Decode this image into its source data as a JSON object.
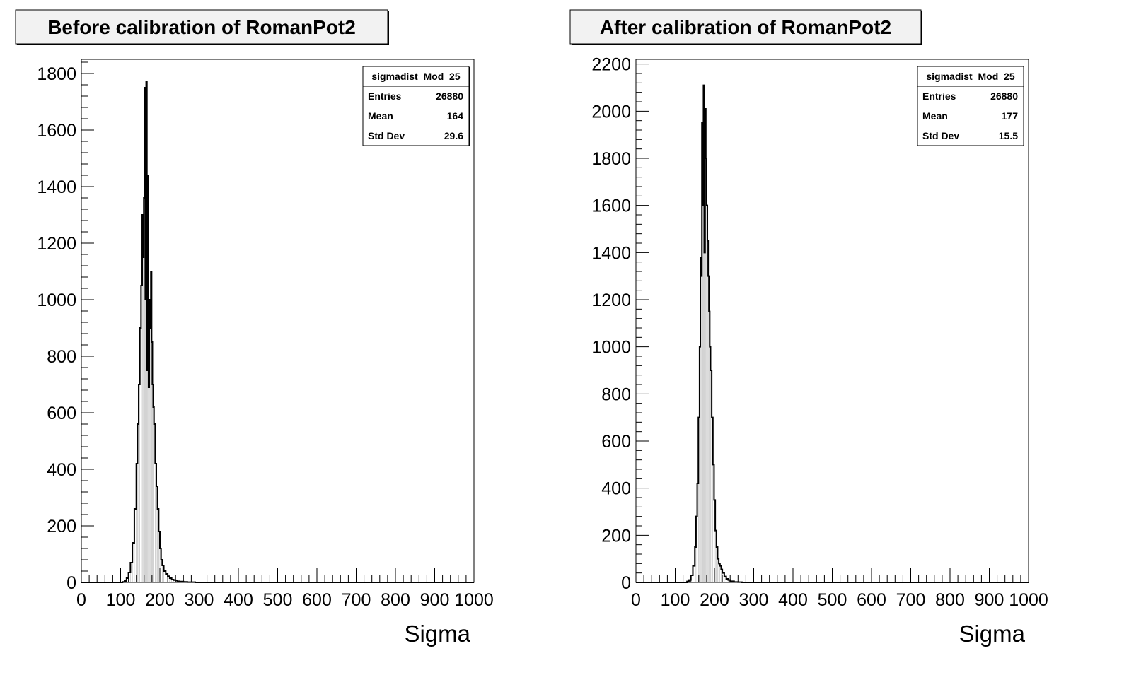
{
  "chart_data": [
    {
      "type": "histogram",
      "title": "Before calibration of RomanPot2",
      "xlabel": "Sigma",
      "ylabel": "",
      "xlim": [
        0,
        1000
      ],
      "ylim": [
        0,
        1850
      ],
      "x_ticks": [
        0,
        100,
        200,
        300,
        400,
        500,
        600,
        700,
        800,
        900,
        1000
      ],
      "y_ticks": [
        0,
        200,
        400,
        600,
        800,
        1000,
        1200,
        1400,
        1600,
        1800
      ],
      "grid": false,
      "legend": "none",
      "stats": {
        "name": "sigmadist_Mod_25",
        "rows": [
          {
            "label": "Entries",
            "value": "26880"
          },
          {
            "label": "Mean",
            "value": "164"
          },
          {
            "label": "Std Dev",
            "value": "29.6"
          }
        ]
      },
      "series": [
        {
          "x": [
            100,
            105,
            110,
            115,
            120,
            125,
            130,
            135,
            140,
            143,
            146,
            149,
            152,
            155,
            157,
            159,
            161,
            163,
            165,
            167,
            169,
            171,
            173,
            175,
            177,
            179,
            181,
            183,
            185,
            188,
            191,
            194,
            197,
            200,
            203,
            206,
            210,
            215,
            220,
            225,
            230,
            235,
            240,
            245,
            250,
            260,
            270,
            280,
            290,
            300
          ],
          "values": [
            0,
            2,
            5,
            15,
            35,
            70,
            140,
            260,
            420,
            560,
            700,
            900,
            1050,
            1300,
            1150,
            1360,
            1750,
            1000,
            1770,
            750,
            1440,
            690,
            1000,
            900,
            1100,
            850,
            700,
            620,
            560,
            420,
            340,
            260,
            180,
            120,
            80,
            60,
            40,
            30,
            22,
            15,
            10,
            8,
            6,
            4,
            3,
            2,
            1,
            1,
            0,
            0
          ]
        }
      ]
    },
    {
      "type": "histogram",
      "title": "After calibration of RomanPot2",
      "xlabel": "Sigma",
      "ylabel": "",
      "xlim": [
        0,
        1000
      ],
      "ylim": [
        0,
        2220
      ],
      "x_ticks": [
        0,
        100,
        200,
        300,
        400,
        500,
        600,
        700,
        800,
        900,
        1000
      ],
      "y_ticks": [
        0,
        200,
        400,
        600,
        800,
        1000,
        1200,
        1400,
        1600,
        1800,
        2000,
        2200
      ],
      "grid": false,
      "legend": "none",
      "stats": {
        "name": "sigmadist_Mod_25",
        "rows": [
          {
            "label": "Entries",
            "value": "26880"
          },
          {
            "label": "Mean",
            "value": "177"
          },
          {
            "label": "Std Dev",
            "value": "15.5"
          }
        ]
      },
      "series": [
        {
          "x": [
            120,
            130,
            135,
            140,
            145,
            150,
            153,
            156,
            159,
            162,
            164,
            166,
            168,
            170,
            172,
            174,
            176,
            178,
            180,
            182,
            184,
            186,
            188,
            190,
            193,
            196,
            199,
            202,
            205,
            208,
            211,
            214,
            217,
            220,
            225,
            230,
            235,
            240,
            250,
            260,
            270,
            280
          ],
          "values": [
            0,
            4,
            10,
            30,
            70,
            150,
            280,
            420,
            700,
            1000,
            1380,
            1300,
            1950,
            1600,
            2110,
            1400,
            2010,
            1800,
            1600,
            1450,
            1300,
            1150,
            1000,
            900,
            700,
            500,
            350,
            220,
            150,
            100,
            80,
            70,
            55,
            40,
            25,
            15,
            10,
            5,
            2,
            1,
            0,
            0
          ]
        }
      ]
    }
  ]
}
